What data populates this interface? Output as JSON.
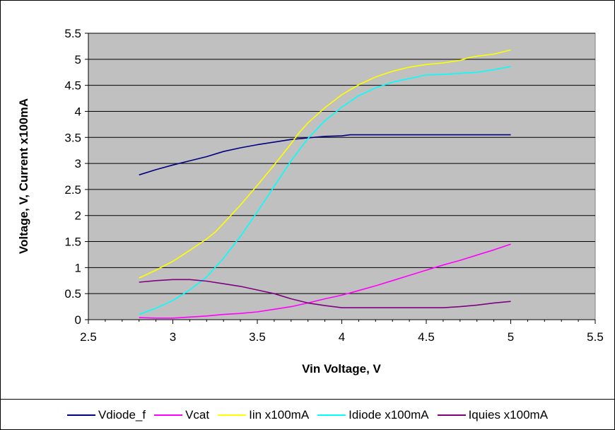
{
  "chart_data": {
    "type": "line",
    "xlabel": "Vin Voltage, V",
    "ylabel": "Voltage, V, Current x100mA",
    "xlim": [
      2.5,
      5.5
    ],
    "ylim": [
      0,
      5.5
    ],
    "xticks": [
      "2.5",
      "3",
      "3.5",
      "4",
      "4.5",
      "5",
      "5.5"
    ],
    "yticks": [
      "0",
      "0.5",
      "1",
      "1.5",
      "2",
      "2.5",
      "3",
      "3.5",
      "4",
      "4.5",
      "5",
      "5.5"
    ],
    "grid": "horizontal",
    "legend_position": "bottom",
    "plot_background": "#c0c0c0",
    "series": [
      {
        "name": "Vdiode_f",
        "color": "#000080",
        "points": [
          [
            2.8,
            2.78
          ],
          [
            2.9,
            2.88
          ],
          [
            3.0,
            2.97
          ],
          [
            3.1,
            3.05
          ],
          [
            3.2,
            3.13
          ],
          [
            3.3,
            3.23
          ],
          [
            3.4,
            3.3
          ],
          [
            3.5,
            3.36
          ],
          [
            3.6,
            3.41
          ],
          [
            3.7,
            3.46
          ],
          [
            3.8,
            3.49
          ],
          [
            3.9,
            3.52
          ],
          [
            4.0,
            3.53
          ],
          [
            4.05,
            3.55
          ],
          [
            4.2,
            3.55
          ],
          [
            4.5,
            3.55
          ],
          [
            4.8,
            3.55
          ],
          [
            5.0,
            3.55
          ]
        ]
      },
      {
        "name": "Vcat",
        "color": "#ff00ff",
        "points": [
          [
            2.8,
            0.04
          ],
          [
            2.9,
            0.03
          ],
          [
            3.0,
            0.03
          ],
          [
            3.1,
            0.05
          ],
          [
            3.2,
            0.07
          ],
          [
            3.3,
            0.1
          ],
          [
            3.4,
            0.12
          ],
          [
            3.5,
            0.15
          ],
          [
            3.6,
            0.2
          ],
          [
            3.7,
            0.25
          ],
          [
            3.8,
            0.32
          ],
          [
            3.9,
            0.4
          ],
          [
            4.0,
            0.47
          ],
          [
            4.1,
            0.56
          ],
          [
            4.2,
            0.65
          ],
          [
            4.3,
            0.75
          ],
          [
            4.4,
            0.85
          ],
          [
            4.5,
            0.95
          ],
          [
            4.6,
            1.05
          ],
          [
            4.7,
            1.14
          ],
          [
            4.8,
            1.24
          ],
          [
            4.9,
            1.34
          ],
          [
            5.0,
            1.45
          ]
        ]
      },
      {
        "name": "Iin x100mA",
        "color": "#ffff00",
        "points": [
          [
            2.8,
            0.8
          ],
          [
            2.9,
            0.95
          ],
          [
            3.0,
            1.12
          ],
          [
            3.1,
            1.33
          ],
          [
            3.2,
            1.55
          ],
          [
            3.25,
            1.68
          ],
          [
            3.3,
            1.85
          ],
          [
            3.4,
            2.2
          ],
          [
            3.5,
            2.58
          ],
          [
            3.6,
            2.97
          ],
          [
            3.7,
            3.38
          ],
          [
            3.75,
            3.6
          ],
          [
            3.8,
            3.78
          ],
          [
            3.9,
            4.07
          ],
          [
            4.0,
            4.32
          ],
          [
            4.1,
            4.51
          ],
          [
            4.2,
            4.66
          ],
          [
            4.3,
            4.77
          ],
          [
            4.4,
            4.85
          ],
          [
            4.5,
            4.9
          ],
          [
            4.6,
            4.93
          ],
          [
            4.7,
            4.98
          ],
          [
            4.75,
            5.03
          ],
          [
            4.8,
            5.06
          ],
          [
            4.9,
            5.1
          ],
          [
            5.0,
            5.18
          ]
        ]
      },
      {
        "name": "Idiode x100mA",
        "color": "#00ffff",
        "points": [
          [
            2.8,
            0.1
          ],
          [
            2.9,
            0.22
          ],
          [
            3.0,
            0.37
          ],
          [
            3.1,
            0.57
          ],
          [
            3.2,
            0.82
          ],
          [
            3.3,
            1.18
          ],
          [
            3.4,
            1.6
          ],
          [
            3.5,
            2.07
          ],
          [
            3.6,
            2.56
          ],
          [
            3.7,
            3.05
          ],
          [
            3.8,
            3.48
          ],
          [
            3.9,
            3.82
          ],
          [
            4.0,
            4.08
          ],
          [
            4.1,
            4.3
          ],
          [
            4.2,
            4.45
          ],
          [
            4.3,
            4.56
          ],
          [
            4.4,
            4.63
          ],
          [
            4.5,
            4.7
          ],
          [
            4.6,
            4.71
          ],
          [
            4.7,
            4.73
          ],
          [
            4.8,
            4.75
          ],
          [
            4.9,
            4.8
          ],
          [
            5.0,
            4.86
          ]
        ]
      },
      {
        "name": "Iquies x100mA",
        "color": "#800080",
        "points": [
          [
            2.8,
            0.72
          ],
          [
            2.9,
            0.75
          ],
          [
            3.0,
            0.77
          ],
          [
            3.1,
            0.77
          ],
          [
            3.2,
            0.74
          ],
          [
            3.3,
            0.69
          ],
          [
            3.4,
            0.64
          ],
          [
            3.5,
            0.57
          ],
          [
            3.6,
            0.5
          ],
          [
            3.7,
            0.4
          ],
          [
            3.8,
            0.32
          ],
          [
            3.9,
            0.27
          ],
          [
            4.0,
            0.23
          ],
          [
            4.2,
            0.23
          ],
          [
            4.4,
            0.23
          ],
          [
            4.6,
            0.23
          ],
          [
            4.7,
            0.25
          ],
          [
            4.8,
            0.28
          ],
          [
            4.9,
            0.32
          ],
          [
            5.0,
            0.35
          ]
        ]
      }
    ]
  }
}
